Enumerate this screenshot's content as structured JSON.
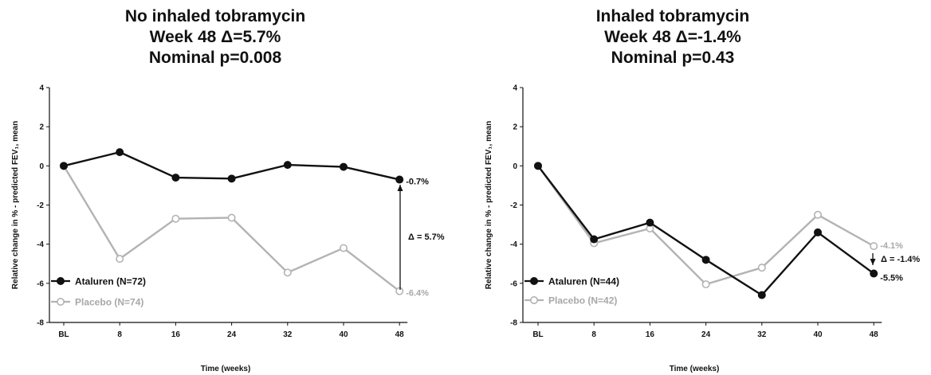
{
  "chart_data": [
    {
      "type": "line",
      "title_lines": [
        "No inhaled tobramycin",
        "Week 48 Δ=5.7%",
        "Nominal p=0.008"
      ],
      "xlabel": "Time (weeks)",
      "ylabel": "Relative change in % - predicted FEV₁, mean",
      "categories": [
        "BL",
        "8",
        "16",
        "24",
        "32",
        "40",
        "48"
      ],
      "ylim": [
        -8,
        4
      ],
      "yticks": [
        "4",
        "2",
        "0",
        "-2",
        "-4",
        "-6",
        "-8"
      ],
      "series": [
        {
          "name": "Ataluren (N=72)",
          "color": "#111111",
          "filled": true,
          "values": [
            0,
            0.7,
            -0.6,
            -0.65,
            0.05,
            -0.05,
            -0.7
          ],
          "end_label": "-0.7%"
        },
        {
          "name": "Placebo (N=74)",
          "color": "#b3b3b3",
          "filled": false,
          "values": [
            0,
            -4.75,
            -2.7,
            -2.65,
            -5.45,
            -4.2,
            -6.4
          ],
          "end_label": "-6.4%"
        }
      ],
      "delta_label": "Δ = 5.7%"
    },
    {
      "type": "line",
      "title_lines": [
        "Inhaled tobramycin",
        "Week 48 Δ=-1.4%",
        "Nominal p=0.43"
      ],
      "xlabel": "Time (weeks)",
      "ylabel": "Relative change in % - predicted FEV₁, mean",
      "categories": [
        "BL",
        "8",
        "16",
        "24",
        "32",
        "40",
        "48"
      ],
      "ylim": [
        -8,
        4
      ],
      "yticks": [
        "4",
        "2",
        "0",
        "-2",
        "-4",
        "-6",
        "-8"
      ],
      "series": [
        {
          "name": "Ataluren (N=44)",
          "color": "#111111",
          "filled": true,
          "values": [
            0,
            -3.75,
            -2.9,
            -4.8,
            -6.6,
            -3.4,
            -5.5
          ],
          "end_label": "-5.5%"
        },
        {
          "name": "Placebo (N=42)",
          "color": "#b3b3b3",
          "filled": false,
          "values": [
            0,
            -3.95,
            -3.2,
            -6.05,
            -5.2,
            -2.5,
            -4.1
          ],
          "end_label": "-4.1%"
        }
      ],
      "delta_label": "Δ = -1.4%"
    }
  ]
}
